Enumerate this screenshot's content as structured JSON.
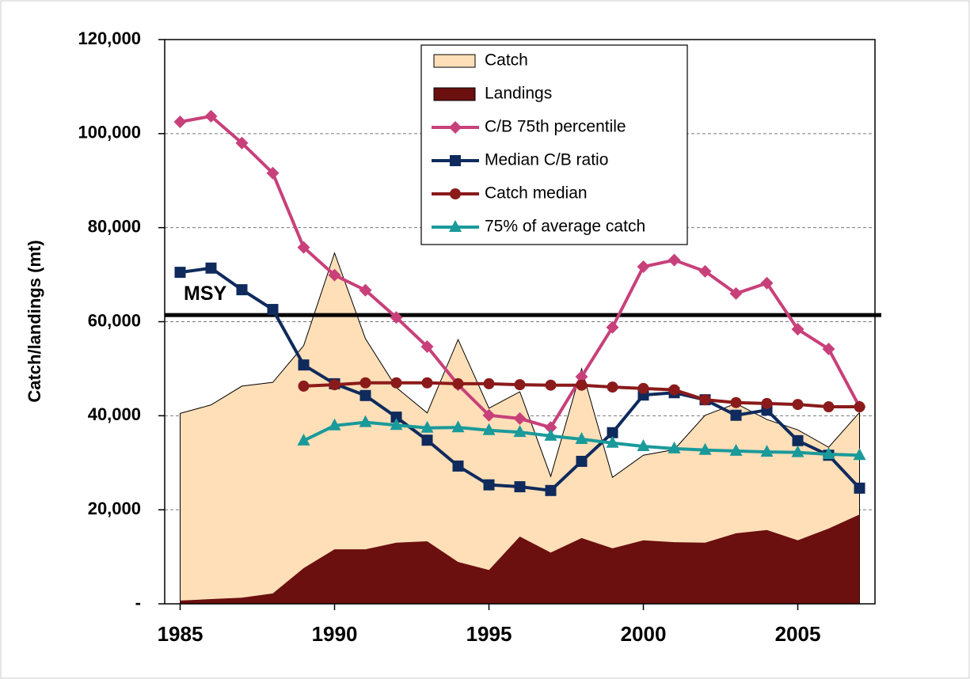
{
  "chart_data": {
    "type": "line",
    "y_label": "Catch/landings (mt)",
    "x": [
      1985,
      1986,
      1987,
      1988,
      1989,
      1990,
      1991,
      1992,
      1993,
      1994,
      1995,
      1996,
      1997,
      1998,
      1999,
      2000,
      2001,
      2002,
      2003,
      2004,
      2005,
      2006,
      2007
    ],
    "series": [
      {
        "name": "Catch",
        "type": "area",
        "color": "#ffdfb8",
        "values": [
          40500,
          42300,
          46300,
          47100,
          54900,
          74600,
          56400,
          46000,
          40600,
          56200,
          41600,
          45100,
          27100,
          50000,
          26900,
          31600,
          32800,
          40100,
          42600,
          39200,
          37000,
          33300,
          40700
        ]
      },
      {
        "name": "Landings",
        "type": "area",
        "color": "#6b0f0f",
        "values": [
          700,
          1000,
          1300,
          2200,
          7600,
          11600,
          11600,
          13000,
          13300,
          8900,
          7200,
          14300,
          10900,
          14000,
          11800,
          13500,
          13100,
          13000,
          15000,
          15700,
          13500,
          16000,
          19000
        ]
      },
      {
        "name": "C/B 75th percentile",
        "type": "line",
        "marker": "diamond",
        "color": "#c8407a",
        "values": [
          102500,
          103700,
          98000,
          91600,
          75800,
          69900,
          66700,
          60900,
          54700,
          46600,
          40100,
          39400,
          37500,
          48300,
          58800,
          71700,
          73100,
          70700,
          66000,
          68200,
          58400,
          54200,
          41900
        ]
      },
      {
        "name": "Median C/B ratio",
        "type": "line",
        "marker": "square",
        "color": "#0f2a5c",
        "values": [
          70500,
          71400,
          66800,
          62600,
          50800,
          46800,
          44300,
          39700,
          34800,
          29300,
          25300,
          24900,
          24100,
          30300,
          36400,
          44400,
          44900,
          43400,
          40100,
          41200,
          34700,
          31600,
          24600
        ]
      },
      {
        "name": "Catch median",
        "type": "line",
        "marker": "circle",
        "color": "#8b1a1a",
        "values": [
          null,
          null,
          null,
          null,
          46300,
          46600,
          47000,
          47000,
          47000,
          46800,
          46800,
          46600,
          46500,
          46500,
          46100,
          45800,
          45500,
          43400,
          42800,
          42600,
          42400,
          41900,
          41900
        ]
      },
      {
        "name": "75% of average catch",
        "type": "line",
        "marker": "triangle",
        "color": "#1a9a9a",
        "values": [
          null,
          null,
          null,
          null,
          34700,
          37900,
          38600,
          38000,
          37400,
          37500,
          36900,
          36500,
          35700,
          35000,
          34200,
          33500,
          33000,
          32700,
          32500,
          32300,
          32200,
          31800,
          31600
        ]
      }
    ],
    "msy": {
      "label": "MSY",
      "value": 61400
    },
    "xlim": [
      1984.5,
      2007.5
    ],
    "xticks": [
      1985,
      1990,
      1995,
      2000,
      2005
    ],
    "ylim": [
      0,
      120000
    ],
    "yticks": [
      {
        "value": 0,
        "label": "-"
      },
      {
        "value": 20000,
        "label": "20,000"
      },
      {
        "value": 40000,
        "label": "40,000"
      },
      {
        "value": 60000,
        "label": "60,000"
      },
      {
        "value": 80000,
        "label": "80,000"
      },
      {
        "value": 100000,
        "label": "100,000"
      },
      {
        "value": 120000,
        "label": "120,000"
      }
    ],
    "grid": true
  }
}
